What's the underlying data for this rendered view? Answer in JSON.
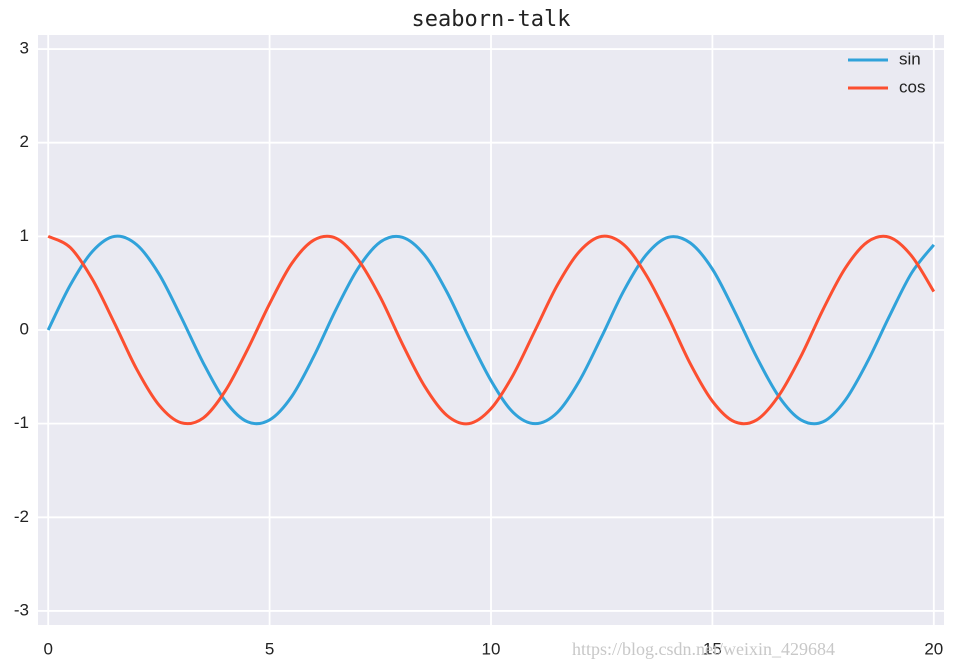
{
  "chart_data": {
    "type": "line",
    "title": "seaborn-talk",
    "x": [
      0,
      0.5,
      1,
      1.5,
      2,
      2.5,
      3,
      3.5,
      4,
      4.5,
      5,
      5.5,
      6,
      6.5,
      7,
      7.5,
      8,
      8.5,
      9,
      9.5,
      10,
      10.5,
      11,
      11.5,
      12,
      12.5,
      13,
      13.5,
      14,
      14.5,
      15,
      15.5,
      16,
      16.5,
      17,
      17.5,
      18,
      18.5,
      19,
      19.5,
      20
    ],
    "series": [
      {
        "name": "sin",
        "color": "#30a2da",
        "values": [
          0,
          0.48,
          0.84,
          1.0,
          0.91,
          0.6,
          0.14,
          -0.35,
          -0.76,
          -0.98,
          -0.96,
          -0.71,
          -0.28,
          0.22,
          0.66,
          0.94,
          0.99,
          0.8,
          0.41,
          -0.08,
          -0.54,
          -0.88,
          -1.0,
          -0.88,
          -0.54,
          -0.07,
          0.42,
          0.8,
          0.99,
          0.93,
          0.65,
          0.2,
          -0.29,
          -0.71,
          -0.96,
          -0.98,
          -0.75,
          -0.34,
          0.15,
          0.61,
          0.91
        ]
      },
      {
        "name": "cos",
        "color": "#fc4f30",
        "values": [
          1,
          0.88,
          0.54,
          0.07,
          -0.42,
          -0.8,
          -0.99,
          -0.94,
          -0.65,
          -0.21,
          0.28,
          0.71,
          0.96,
          0.98,
          0.75,
          0.35,
          -0.15,
          -0.6,
          -0.91,
          -1.0,
          -0.84,
          -0.48,
          0.0,
          0.48,
          0.84,
          1.0,
          0.91,
          0.59,
          0.14,
          -0.36,
          -0.76,
          -0.98,
          -0.96,
          -0.7,
          -0.28,
          0.22,
          0.66,
          0.94,
          0.99,
          0.79,
          0.41
        ]
      }
    ],
    "xlim": [
      -0.23,
      20.23
    ],
    "xticks": [
      0,
      5,
      10,
      15,
      20
    ],
    "ylim": [
      -3.15,
      3.15
    ],
    "yticks": [
      -3,
      -2,
      -1,
      0,
      1,
      2,
      3
    ],
    "grid": true,
    "legend": "upper right",
    "background": "#eaeaf2",
    "watermark": "https://blog.csdn.net/weixin_429684"
  }
}
